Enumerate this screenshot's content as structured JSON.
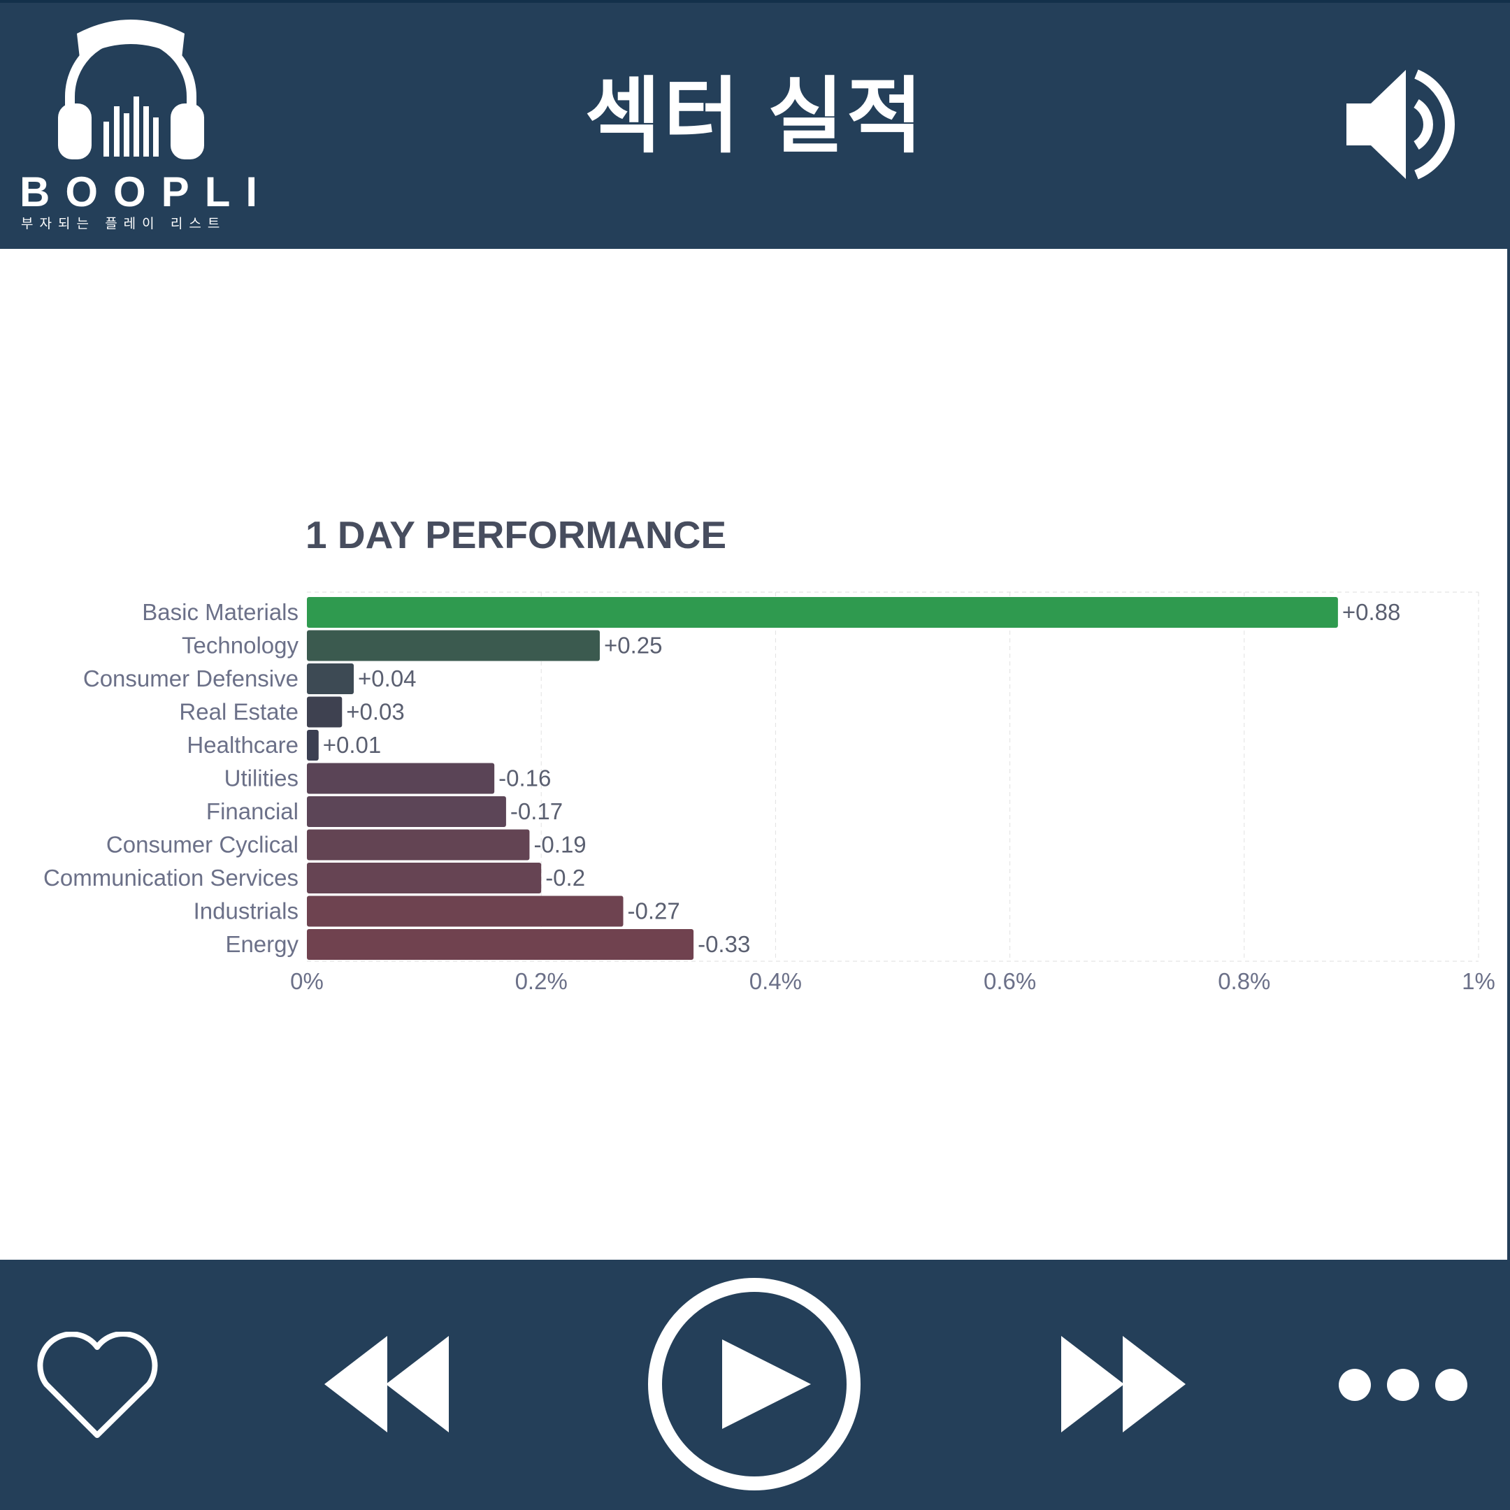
{
  "header": {
    "title": "섹터 실적",
    "logo": {
      "word": "BOOPLI",
      "tagline": "부자되는 플레이 리스트",
      "icon": "headphones-icon"
    },
    "volume_icon": "speaker-icon"
  },
  "footer": {
    "controls": [
      "heart-icon",
      "rewind-icon",
      "play-icon",
      "fast-forward-icon",
      "more-icon"
    ]
  },
  "colors": {
    "bar_background": "#243f59",
    "positive": "#2f9a4f",
    "negative": "#70424f",
    "text": "#6b7088",
    "title": "#474d5e"
  },
  "chart_data": {
    "type": "bar",
    "orientation": "horizontal",
    "title": "1 DAY PERFORMANCE",
    "categories": [
      "Basic Materials",
      "Technology",
      "Consumer Defensive",
      "Real Estate",
      "Healthcare",
      "Utilities",
      "Financial",
      "Consumer Cyclical",
      "Communication Services",
      "Industrials",
      "Energy"
    ],
    "values": [
      0.88,
      0.25,
      0.04,
      0.03,
      0.01,
      -0.16,
      -0.17,
      -0.19,
      -0.2,
      -0.27,
      -0.33
    ],
    "data_labels": [
      "+0.88",
      "+0.25",
      "+0.04",
      "+0.03",
      "+0.01",
      "-0.16",
      "-0.17",
      "-0.19",
      "-0.2",
      "-0.27",
      "-0.33"
    ],
    "bar_colors": [
      "#2f9a4f",
      "#3b5a4f",
      "#3d4a54",
      "#3e4150",
      "#3b3f52",
      "#5a4456",
      "#5c4557",
      "#634453",
      "#664453",
      "#6e4350",
      "#70424f"
    ],
    "bar_length": "absolute value",
    "xlim": [
      0,
      1
    ],
    "x_ticks": [
      "0%",
      "0.2%",
      "0.4%",
      "0.6%",
      "0.8%",
      "1%"
    ],
    "grid": true
  }
}
